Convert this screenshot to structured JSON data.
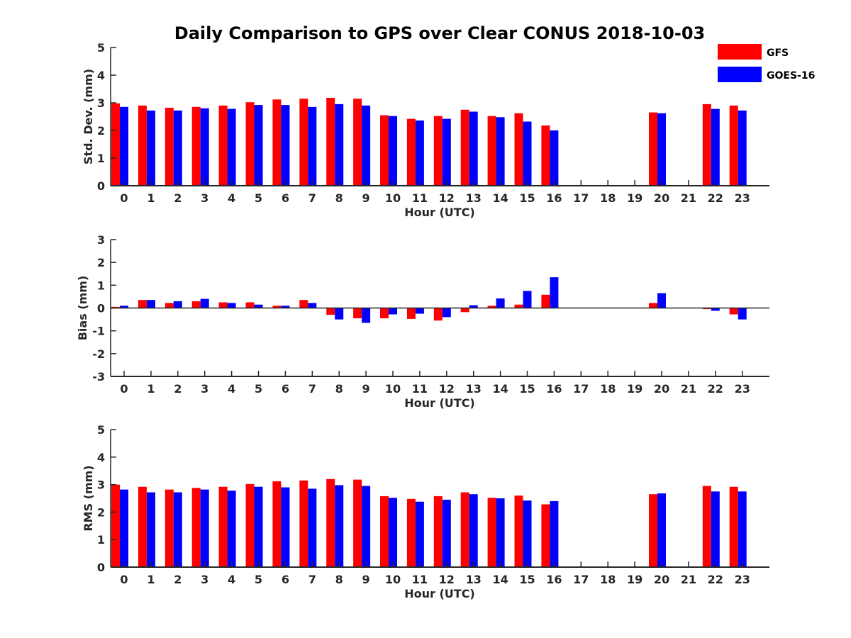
{
  "chart_data": {
    "title": "Daily Comparison to GPS over Clear CONUS 2018-10-03",
    "legend": {
      "position": "top-right",
      "entries": [
        {
          "name": "GFS",
          "color": "#ff0000"
        },
        {
          "name": "GOES-16",
          "color": "#0000ff"
        }
      ]
    },
    "panels": [
      {
        "type": "bar",
        "ylabel": "Std. Dev. (mm)",
        "xlabel": "Hour (UTC)",
        "ylim": [
          0,
          5
        ],
        "yticks": [
          "0",
          "1",
          "2",
          "3",
          "4",
          "5"
        ],
        "categories": [
          "0",
          "1",
          "2",
          "3",
          "4",
          "5",
          "6",
          "7",
          "8",
          "9",
          "10",
          "11",
          "12",
          "13",
          "14",
          "15",
          "16",
          "17",
          "18",
          "19",
          "20",
          "21",
          "22",
          "23"
        ],
        "series": [
          {
            "name": "GFS",
            "color": "#ff0000",
            "values": [
              2.98,
              2.9,
              2.82,
              2.85,
              2.9,
              3.02,
              3.12,
              3.15,
              3.18,
              3.15,
              2.55,
              2.42,
              2.52,
              2.75,
              2.52,
              2.62,
              2.18,
              null,
              null,
              null,
              2.65,
              null,
              2.95,
              2.9
            ]
          },
          {
            "name": "GOES-16",
            "color": "#0000ff",
            "values": [
              2.85,
              2.72,
              2.72,
              2.8,
              2.78,
              2.92,
              2.92,
              2.85,
              2.95,
              2.9,
              2.52,
              2.36,
              2.42,
              2.68,
              2.48,
              2.32,
              2.0,
              null,
              null,
              null,
              2.62,
              null,
              2.78,
              2.72
            ]
          }
        ]
      },
      {
        "type": "bar",
        "ylabel": "Bias (mm)",
        "xlabel": "Hour (UTC)",
        "ylim": [
          -3,
          3
        ],
        "yticks": [
          "-3",
          "-2",
          "-1",
          "0",
          "1",
          "2",
          "3"
        ],
        "categories": [
          "0",
          "1",
          "2",
          "3",
          "4",
          "5",
          "6",
          "7",
          "8",
          "9",
          "10",
          "11",
          "12",
          "13",
          "14",
          "15",
          "16",
          "17",
          "18",
          "19",
          "20",
          "21",
          "22",
          "23"
        ],
        "series": [
          {
            "name": "GFS",
            "color": "#ff0000",
            "values": [
              0.05,
              0.35,
              0.22,
              0.3,
              0.25,
              0.25,
              0.1,
              0.35,
              -0.3,
              -0.45,
              -0.45,
              -0.48,
              -0.55,
              -0.18,
              0.1,
              0.15,
              0.58,
              null,
              null,
              null,
              0.22,
              null,
              -0.05,
              -0.28
            ]
          },
          {
            "name": "GOES-16",
            "color": "#0000ff",
            "values": [
              0.1,
              0.35,
              0.3,
              0.4,
              0.22,
              0.15,
              0.1,
              0.22,
              -0.5,
              -0.65,
              -0.28,
              -0.25,
              -0.4,
              0.12,
              0.42,
              0.75,
              1.35,
              null,
              null,
              null,
              0.65,
              null,
              -0.12,
              -0.5
            ]
          }
        ]
      },
      {
        "type": "bar",
        "ylabel": "RMS (mm)",
        "xlabel": "Hour (UTC)",
        "ylim": [
          0,
          5
        ],
        "yticks": [
          "0",
          "1",
          "2",
          "3",
          "4",
          "5"
        ],
        "categories": [
          "0",
          "1",
          "2",
          "3",
          "4",
          "5",
          "6",
          "7",
          "8",
          "9",
          "10",
          "11",
          "12",
          "13",
          "14",
          "15",
          "16",
          "17",
          "18",
          "19",
          "20",
          "21",
          "22",
          "23"
        ],
        "series": [
          {
            "name": "GFS",
            "color": "#ff0000",
            "values": [
              3.0,
              2.92,
              2.82,
              2.88,
              2.92,
              3.02,
              3.12,
              3.15,
              3.2,
              3.18,
              2.58,
              2.48,
              2.58,
              2.72,
              2.52,
              2.6,
              2.28,
              null,
              null,
              null,
              2.65,
              null,
              2.95,
              2.92
            ]
          },
          {
            "name": "GOES-16",
            "color": "#0000ff",
            "values": [
              2.82,
              2.72,
              2.72,
              2.82,
              2.78,
              2.92,
              2.9,
              2.85,
              2.98,
              2.95,
              2.52,
              2.38,
              2.45,
              2.65,
              2.5,
              2.42,
              2.4,
              null,
              null,
              null,
              2.68,
              null,
              2.75,
              2.75
            ]
          }
        ]
      }
    ]
  }
}
